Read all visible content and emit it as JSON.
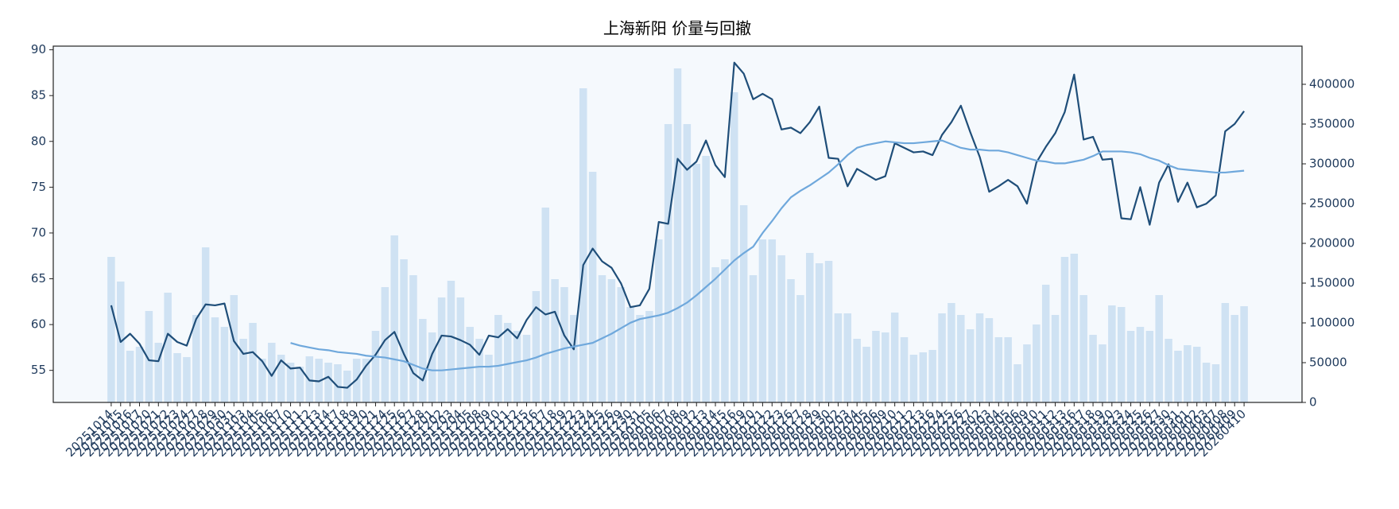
{
  "chart_data": {
    "type": "combo",
    "title": "上海新阳 价量与回撤",
    "categories": [
      "20251014",
      "20251015",
      "20251016",
      "20251017",
      "20251020",
      "20251021",
      "20251022",
      "20251023",
      "20251024",
      "20251027",
      "20251028",
      "20251029",
      "20251030",
      "20251031",
      "20251103",
      "20251104",
      "20251105",
      "20251106",
      "20251107",
      "20251110",
      "20251111",
      "20251112",
      "20251113",
      "20251114",
      "20251117",
      "20251118",
      "20251119",
      "20251120",
      "20251121",
      "20251124",
      "20251125",
      "20251126",
      "20251127",
      "20251128",
      "20251201",
      "20251202",
      "20251203",
      "20251204",
      "20251205",
      "20251208",
      "20251209",
      "20251210",
      "20251211",
      "20251212",
      "20251215",
      "20251216",
      "20251217",
      "20251218",
      "20251219",
      "20251222",
      "20251223",
      "20251224",
      "20251225",
      "20251226",
      "20251229",
      "20251230",
      "20251231",
      "20260105",
      "20260106",
      "20260107",
      "20260108",
      "20260109",
      "20260112",
      "20260113",
      "20260114",
      "20260115",
      "20260116",
      "20260119",
      "20260120",
      "20260121",
      "20260122",
      "20260123",
      "20260126",
      "20260127",
      "20260128",
      "20260129",
      "20260130",
      "20260202",
      "20260203",
      "20260204",
      "20260205",
      "20260206",
      "20260209",
      "20260210",
      "20260211",
      "20260212",
      "20260213",
      "20260216",
      "20260224",
      "20260225",
      "20260226",
      "20260227",
      "20260302",
      "20260303",
      "20260304",
      "20260305",
      "20260306",
      "20260309",
      "20260310",
      "20260311",
      "20260312",
      "20260313",
      "20260316",
      "20260317",
      "20260318",
      "20260319",
      "20260320",
      "20260323",
      "20260324",
      "20260325",
      "20260326",
      "20260327",
      "20260330",
      "20260331",
      "20260401",
      "20260402",
      "20260403",
      "20260407",
      "20260408",
      "20260409",
      "20260410"
    ],
    "series": [
      {
        "type": "bar",
        "axis": "y2",
        "color": "#cfe2f3",
        "values": [
          183000,
          152000,
          65000,
          70000,
          115000,
          75000,
          138000,
          62000,
          57000,
          110000,
          195000,
          107000,
          95000,
          135000,
          80000,
          100000,
          55000,
          75000,
          60000,
          50000,
          45000,
          58000,
          55000,
          50000,
          48000,
          40000,
          55000,
          55000,
          90000,
          145000,
          210000,
          180000,
          160000,
          105000,
          88000,
          132000,
          153000,
          132000,
          95000,
          80000,
          60000,
          110000,
          100000,
          90000,
          85000,
          140000,
          245000,
          155000,
          145000,
          110000,
          395000,
          290000,
          160000,
          155000,
          145000,
          120000,
          110000,
          115000,
          205000,
          350000,
          420000,
          350000,
          300000,
          310000,
          170000,
          180000,
          390000,
          248000,
          160000,
          205000,
          205000,
          185000,
          155000,
          135000,
          188000,
          175000,
          178000,
          112000,
          112000,
          80000,
          70000,
          90000,
          88000,
          113000,
          82000,
          60000,
          63000,
          66000,
          112000,
          125000,
          110000,
          92000,
          112000,
          106000,
          82000,
          82000,
          48000,
          73000,
          98000,
          148000,
          110000,
          183000,
          187000,
          135000,
          85000,
          73000,
          122000,
          120000,
          90000,
          95000,
          90000,
          135000,
          80000,
          65000,
          72000,
          70000,
          50000,
          48000,
          125000,
          110000,
          121000
        ]
      },
      {
        "type": "line",
        "color": "#1f4e79",
        "values": [
          62.1,
          58.1,
          59.0,
          57.9,
          56.1,
          56.0,
          59.0,
          58.1,
          57.7,
          60.6,
          62.2,
          62.1,
          62.3,
          58.2,
          56.8,
          57.0,
          56.0,
          54.4,
          56.1,
          55.2,
          55.3,
          53.9,
          53.8,
          54.3,
          53.2,
          53.1,
          54.0,
          55.5,
          56.7,
          58.3,
          59.2,
          56.8,
          54.7,
          53.9,
          56.8,
          58.8,
          58.7,
          58.3,
          57.8,
          56.7,
          58.8,
          58.6,
          59.5,
          58.5,
          60.5,
          61.9,
          61.1,
          61.4,
          58.8,
          57.3,
          66.5,
          68.3,
          66.9,
          66.2,
          64.5,
          61.9,
          62.1,
          63.9,
          71.2,
          71.0,
          78.1,
          76.9,
          77.8,
          80.1,
          77.4,
          76.1,
          88.6,
          87.4,
          84.6,
          85.2,
          84.6,
          81.3,
          81.5,
          80.9,
          82.1,
          83.8,
          78.2,
          78.1,
          75.1,
          77.0,
          76.4,
          75.8,
          76.2,
          79.8,
          79.3,
          78.8,
          78.9,
          78.5,
          80.7,
          82.1,
          83.9,
          81.0,
          78.3,
          74.5,
          75.1,
          75.8,
          75.1,
          73.2,
          77.7,
          79.4,
          80.9,
          83.2,
          87.3,
          80.2,
          80.5,
          78.0,
          78.1,
          71.6,
          71.5,
          75.0,
          70.9,
          75.5,
          77.5,
          73.4,
          75.5,
          72.8,
          73.2,
          74.1,
          81.1,
          81.9,
          83.3
        ]
      },
      {
        "type": "line",
        "color": "#6fa8dc",
        "values": [
          null,
          null,
          null,
          null,
          null,
          null,
          null,
          null,
          null,
          null,
          null,
          null,
          null,
          null,
          null,
          null,
          null,
          null,
          null,
          58.0,
          57.7,
          57.5,
          57.3,
          57.2,
          57.0,
          56.9,
          56.8,
          56.6,
          56.5,
          56.4,
          56.2,
          56.0,
          55.6,
          55.2,
          55.0,
          55.0,
          55.1,
          55.2,
          55.3,
          55.4,
          55.4,
          55.5,
          55.7,
          55.9,
          56.1,
          56.4,
          56.8,
          57.1,
          57.4,
          57.6,
          57.8,
          58.0,
          58.5,
          59.0,
          59.6,
          60.2,
          60.6,
          60.8,
          61.0,
          61.3,
          61.8,
          62.4,
          63.2,
          64.1,
          65.0,
          66.0,
          67.0,
          67.8,
          68.5,
          70.0,
          71.3,
          72.7,
          73.9,
          74.6,
          75.2,
          75.9,
          76.6,
          77.5,
          78.5,
          79.3,
          79.6,
          79.8,
          80.0,
          79.9,
          79.8,
          79.8,
          79.9,
          80.0,
          80.1,
          79.7,
          79.3,
          79.1,
          79.1,
          79.0,
          79.0,
          78.8,
          78.5,
          78.2,
          77.9,
          77.8,
          77.6,
          77.6,
          77.8,
          78.0,
          78.4,
          78.9,
          78.9,
          78.9,
          78.8,
          78.6,
          78.2,
          77.9,
          77.4,
          77.0,
          76.9,
          76.8,
          76.7,
          76.6,
          76.6,
          76.7,
          76.8
        ]
      }
    ],
    "ylim": [
      51.5,
      90.4
    ],
    "yticks": [
      55,
      60,
      65,
      70,
      75,
      80,
      85,
      90
    ],
    "y2lim": [
      0,
      448000
    ],
    "y2ticks": [
      0,
      50000,
      100000,
      150000,
      200000,
      250000,
      300000,
      350000,
      400000
    ],
    "grid": false,
    "background": "#f5f9fd"
  }
}
